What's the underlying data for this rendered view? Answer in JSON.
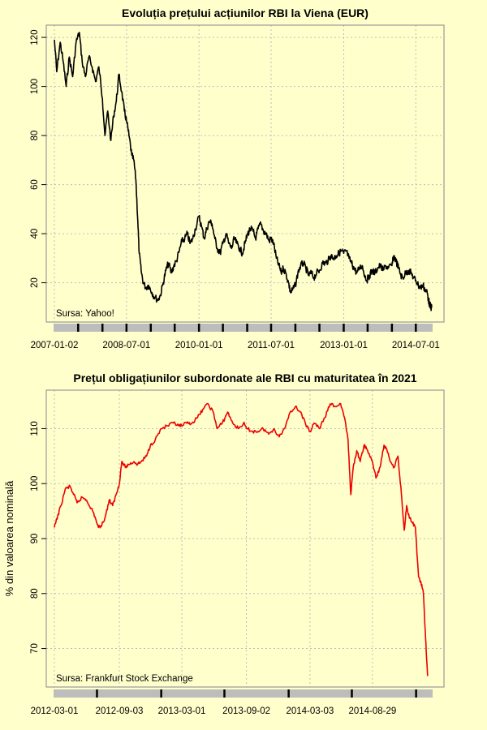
{
  "chart_data": [
    {
      "type": "line",
      "title": "Evoluția prețului acțiunilor RBI la Viena (EUR)",
      "ylabel": "",
      "source": "Sursa: Yahoo!",
      "series_color": "#000000",
      "x_tick_labels": [
        "2007-01-02",
        "2008-07-01",
        "2010-01-01",
        "2011-07-01",
        "2013-01-01",
        "2014-07-01"
      ],
      "y_ticks": [
        20,
        40,
        60,
        80,
        100,
        120
      ],
      "ylim": [
        4,
        125
      ],
      "xlim": [
        "2007-01-02",
        "2014-10-30"
      ],
      "series": [
        {
          "points": [
            [
              "2007-01-02",
              119
            ],
            [
              "2007-01-20",
              106
            ],
            [
              "2007-02-15",
              118
            ],
            [
              "2007-03-10",
              110
            ],
            [
              "2007-04-01",
              100
            ],
            [
              "2007-04-25",
              112
            ],
            [
              "2007-05-20",
              104
            ],
            [
              "2007-06-15",
              118
            ],
            [
              "2007-07-10",
              122
            ],
            [
              "2007-08-01",
              110
            ],
            [
              "2007-08-25",
              104
            ],
            [
              "2007-09-20",
              112
            ],
            [
              "2007-10-15",
              108
            ],
            [
              "2007-11-10",
              102
            ],
            [
              "2007-12-05",
              108
            ],
            [
              "2008-01-01",
              95
            ],
            [
              "2008-01-20",
              80
            ],
            [
              "2008-02-10",
              90
            ],
            [
              "2008-03-05",
              78
            ],
            [
              "2008-03-25",
              88
            ],
            [
              "2008-04-15",
              94
            ],
            [
              "2008-05-05",
              105
            ],
            [
              "2008-05-25",
              98
            ],
            [
              "2008-06-15",
              90
            ],
            [
              "2008-07-01",
              86
            ],
            [
              "2008-07-20",
              80
            ],
            [
              "2008-08-10",
              72
            ],
            [
              "2008-08-25",
              70
            ],
            [
              "2008-09-10",
              62
            ],
            [
              "2008-09-25",
              45
            ],
            [
              "2008-10-05",
              32
            ],
            [
              "2008-10-20",
              25
            ],
            [
              "2008-11-05",
              20
            ],
            [
              "2008-11-25",
              18
            ],
            [
              "2008-12-15",
              19
            ],
            [
              "2009-01-10",
              16
            ],
            [
              "2009-02-01",
              14
            ],
            [
              "2009-02-25",
              13
            ],
            [
              "2009-03-15",
              15
            ],
            [
              "2009-04-05",
              20
            ],
            [
              "2009-04-25",
              25
            ],
            [
              "2009-05-15",
              28
            ],
            [
              "2009-06-05",
              24
            ],
            [
              "2009-06-25",
              27
            ],
            [
              "2009-07-15",
              29
            ],
            [
              "2009-08-05",
              33
            ],
            [
              "2009-08-25",
              37
            ],
            [
              "2009-09-15",
              38
            ],
            [
              "2009-10-05",
              40
            ],
            [
              "2009-10-25",
              36
            ],
            [
              "2009-11-15",
              38
            ],
            [
              "2009-12-05",
              42
            ],
            [
              "2010-01-01",
              47
            ],
            [
              "2010-01-20",
              43
            ],
            [
              "2010-02-10",
              38
            ],
            [
              "2010-03-01",
              42
            ],
            [
              "2010-03-20",
              45
            ],
            [
              "2010-04-10",
              44
            ],
            [
              "2010-05-01",
              38
            ],
            [
              "2010-05-20",
              34
            ],
            [
              "2010-06-10",
              32
            ],
            [
              "2010-07-01",
              36
            ],
            [
              "2010-07-25",
              40
            ],
            [
              "2010-08-15",
              36
            ],
            [
              "2010-09-05",
              34
            ],
            [
              "2010-09-25",
              38
            ],
            [
              "2010-10-15",
              36
            ],
            [
              "2010-11-05",
              34
            ],
            [
              "2010-11-25",
              32
            ],
            [
              "2010-12-15",
              36
            ],
            [
              "2011-01-05",
              40
            ],
            [
              "2011-01-25",
              42
            ],
            [
              "2011-02-15",
              41
            ],
            [
              "2011-03-05",
              38
            ],
            [
              "2011-03-25",
              42
            ],
            [
              "2011-04-15",
              44
            ],
            [
              "2011-05-05",
              41
            ],
            [
              "2011-05-25",
              40
            ],
            [
              "2011-06-15",
              37
            ],
            [
              "2011-07-01",
              38
            ],
            [
              "2011-07-20",
              36
            ],
            [
              "2011-08-10",
              30
            ],
            [
              "2011-08-30",
              27
            ],
            [
              "2011-09-15",
              24
            ],
            [
              "2011-10-01",
              26
            ],
            [
              "2011-10-20",
              24
            ],
            [
              "2011-11-10",
              20
            ],
            [
              "2011-11-25",
              16
            ],
            [
              "2011-12-10",
              17
            ],
            [
              "2012-01-01",
              19
            ],
            [
              "2012-01-20",
              24
            ],
            [
              "2012-02-10",
              27
            ],
            [
              "2012-03-01",
              28
            ],
            [
              "2012-03-20",
              26
            ],
            [
              "2012-04-10",
              23
            ],
            [
              "2012-05-01",
              24
            ],
            [
              "2012-05-20",
              22
            ],
            [
              "2012-06-10",
              24
            ],
            [
              "2012-07-01",
              25
            ],
            [
              "2012-07-25",
              28
            ],
            [
              "2012-08-15",
              28
            ],
            [
              "2012-09-05",
              29
            ],
            [
              "2012-09-25",
              31
            ],
            [
              "2012-10-15",
              30
            ],
            [
              "2012-11-05",
              31
            ],
            [
              "2012-11-25",
              32
            ],
            [
              "2012-12-15",
              33
            ],
            [
              "2013-01-01",
              32
            ],
            [
              "2013-01-20",
              33
            ],
            [
              "2013-02-10",
              30
            ],
            [
              "2013-03-01",
              28
            ],
            [
              "2013-03-20",
              26
            ],
            [
              "2013-04-10",
              24
            ],
            [
              "2013-05-01",
              26
            ],
            [
              "2013-05-20",
              27
            ],
            [
              "2013-06-10",
              23
            ],
            [
              "2013-06-25",
              21
            ],
            [
              "2013-07-15",
              23
            ],
            [
              "2013-08-05",
              25
            ],
            [
              "2013-08-25",
              24
            ],
            [
              "2013-09-15",
              26
            ],
            [
              "2013-10-05",
              27
            ],
            [
              "2013-10-25",
              25
            ],
            [
              "2013-11-15",
              27
            ],
            [
              "2013-12-05",
              26
            ],
            [
              "2014-01-01",
              27
            ],
            [
              "2014-01-15",
              31
            ],
            [
              "2014-02-01",
              29
            ],
            [
              "2014-02-20",
              26
            ],
            [
              "2014-03-10",
              23
            ],
            [
              "2014-03-25",
              22
            ],
            [
              "2014-04-15",
              24
            ],
            [
              "2014-05-05",
              25
            ],
            [
              "2014-05-25",
              24
            ],
            [
              "2014-06-15",
              22
            ],
            [
              "2014-07-01",
              21
            ],
            [
              "2014-07-20",
              19
            ],
            [
              "2014-08-05",
              18
            ],
            [
              "2014-08-25",
              19
            ],
            [
              "2014-09-10",
              17
            ],
            [
              "2014-09-25",
              16
            ],
            [
              "2014-10-05",
              13
            ],
            [
              "2014-10-15",
              11
            ],
            [
              "2014-10-22",
              10
            ],
            [
              "2014-10-30",
              10
            ]
          ]
        }
      ]
    },
    {
      "type": "line",
      "title": "Prețul obligațiunilor subordonate ale RBI cu maturitatea în 2021",
      "ylabel": "% din valoarea nominală",
      "source": "Sursa: Frankfurt Stock Exchange",
      "series_color": "#ee0000",
      "x_tick_labels": [
        "2012-03-01",
        "2012-09-03",
        "2013-03-01",
        "2013-09-02",
        "2014-03-03",
        "2014-08-29"
      ],
      "y_ticks": [
        70,
        80,
        90,
        100,
        110
      ],
      "ylim": [
        63,
        117
      ],
      "xlim": [
        "2012-03-01",
        "2015-02-15"
      ],
      "series": [
        {
          "points": [
            [
              "2012-03-01",
              92
            ],
            [
              "2012-03-10",
              94
            ],
            [
              "2012-03-20",
              96
            ],
            [
              "2012-04-01",
              99
            ],
            [
              "2012-04-15",
              99.5
            ],
            [
              "2012-04-25",
              98
            ],
            [
              "2012-05-05",
              96.5
            ],
            [
              "2012-05-20",
              97.5
            ],
            [
              "2012-06-01",
              97
            ],
            [
              "2012-06-15",
              95.5
            ],
            [
              "2012-06-25",
              94
            ],
            [
              "2012-07-05",
              92
            ],
            [
              "2012-07-15",
              92.5
            ],
            [
              "2012-07-25",
              94
            ],
            [
              "2012-08-05",
              97
            ],
            [
              "2012-08-15",
              96
            ],
            [
              "2012-08-25",
              98
            ],
            [
              "2012-09-03",
              100
            ],
            [
              "2012-09-10",
              104
            ],
            [
              "2012-09-20",
              103
            ],
            [
              "2012-10-01",
              103.5
            ],
            [
              "2012-10-15",
              104
            ],
            [
              "2012-10-25",
              103.5
            ],
            [
              "2012-11-05",
              104
            ],
            [
              "2012-11-20",
              105
            ],
            [
              "2012-12-01",
              107
            ],
            [
              "2012-12-15",
              108
            ],
            [
              "2013-01-01",
              110
            ],
            [
              "2013-01-20",
              110.5
            ],
            [
              "2013-02-05",
              111
            ],
            [
              "2013-02-20",
              110.5
            ],
            [
              "2013-03-01",
              110.5
            ],
            [
              "2013-03-15",
              111
            ],
            [
              "2013-03-30",
              111
            ],
            [
              "2013-04-15",
              112
            ],
            [
              "2013-04-30",
              113.5
            ],
            [
              "2013-05-15",
              114.5
            ],
            [
              "2013-05-30",
              113
            ],
            [
              "2013-06-10",
              110
            ],
            [
              "2013-06-25",
              111
            ],
            [
              "2013-07-10",
              113
            ],
            [
              "2013-07-25",
              111
            ],
            [
              "2013-08-10",
              110
            ],
            [
              "2013-08-25",
              111
            ],
            [
              "2013-09-02",
              110
            ],
            [
              "2013-09-20",
              109.5
            ],
            [
              "2013-10-05",
              109.5
            ],
            [
              "2013-10-20",
              110
            ],
            [
              "2013-11-05",
              109
            ],
            [
              "2013-11-20",
              110
            ],
            [
              "2013-12-05",
              108.5
            ],
            [
              "2013-12-20",
              110
            ],
            [
              "2014-01-05",
              113
            ],
            [
              "2014-01-20",
              114
            ],
            [
              "2014-02-05",
              113
            ],
            [
              "2014-02-20",
              110.5
            ],
            [
              "2014-03-03",
              109.5
            ],
            [
              "2014-03-15",
              111
            ],
            [
              "2014-03-30",
              110
            ],
            [
              "2014-04-15",
              112
            ],
            [
              "2014-04-30",
              114.5
            ],
            [
              "2014-05-15",
              114
            ],
            [
              "2014-05-30",
              114.5
            ],
            [
              "2014-06-10",
              112
            ],
            [
              "2014-06-20",
              108
            ],
            [
              "2014-06-28",
              98
            ],
            [
              "2014-07-05",
              103
            ],
            [
              "2014-07-15",
              106
            ],
            [
              "2014-07-25",
              104
            ],
            [
              "2014-08-05",
              107
            ],
            [
              "2014-08-15",
              106
            ],
            [
              "2014-08-29",
              104
            ],
            [
              "2014-09-08",
              101
            ],
            [
              "2014-09-20",
              103
            ],
            [
              "2014-10-01",
              107
            ],
            [
              "2014-10-10",
              106
            ],
            [
              "2014-10-20",
              104
            ],
            [
              "2014-10-30",
              103
            ],
            [
              "2014-11-10",
              105
            ],
            [
              "2014-11-20",
              98
            ],
            [
              "2014-11-28",
              91.5
            ],
            [
              "2014-12-05",
              96
            ],
            [
              "2014-12-12",
              94
            ],
            [
              "2014-12-20",
              93
            ],
            [
              "2014-12-30",
              92
            ],
            [
              "2015-01-08",
              83
            ],
            [
              "2015-01-15",
              82
            ],
            [
              "2015-01-22",
              80
            ],
            [
              "2015-01-28",
              72
            ],
            [
              "2015-02-03",
              65
            ]
          ]
        }
      ]
    }
  ]
}
